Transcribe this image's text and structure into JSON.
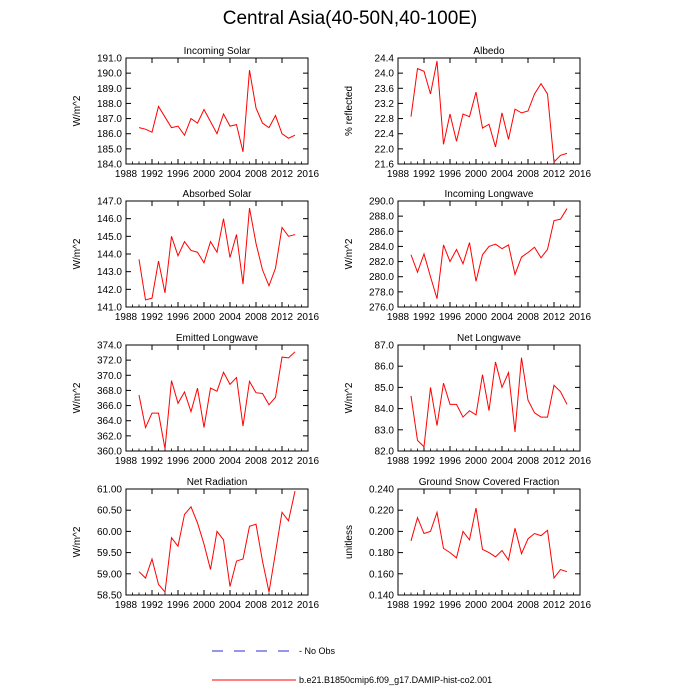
{
  "page_title": "Central Asia(40-50N,40-100E)",
  "chart_data": [
    {
      "type": "line",
      "title": "Incoming Solar",
      "ylabel": "W/m^2",
      "xlim": [
        1988,
        2016
      ],
      "ylim": [
        184.0,
        191.0
      ],
      "xticks": [
        "1988",
        "1992",
        "1996",
        "2000",
        "2004",
        "2008",
        "2012",
        "2016"
      ],
      "yticks": [
        "184.0",
        "185.0",
        "186.0",
        "187.0",
        "188.0",
        "189.0",
        "190.0",
        "191.0"
      ],
      "grid": false,
      "series": [
        {
          "name": "b.e21.B1850cmip6.f09_g17.DAMIP-hist-co2.001",
          "color": "#ff0000",
          "x": [
            1990,
            1991,
            1992,
            1993,
            1994,
            1995,
            1996,
            1997,
            1998,
            1999,
            2000,
            2001,
            2002,
            2003,
            2004,
            2005,
            2006,
            2007,
            2008,
            2009,
            2010,
            2011,
            2012,
            2013,
            2014
          ],
          "y": [
            186.4,
            186.3,
            186.1,
            187.8,
            187.1,
            186.4,
            186.5,
            185.9,
            187.0,
            186.7,
            187.6,
            186.8,
            186.0,
            187.3,
            186.5,
            186.6,
            184.8,
            190.2,
            187.7,
            186.7,
            186.4,
            187.2,
            186.0,
            185.7,
            185.9
          ]
        }
      ]
    },
    {
      "type": "line",
      "title": "Albedo",
      "ylabel": "% reflected",
      "xlim": [
        1988,
        2016
      ],
      "ylim": [
        21.6,
        24.4
      ],
      "xticks": [
        "1988",
        "1992",
        "1996",
        "2000",
        "2004",
        "2008",
        "2012",
        "2016"
      ],
      "yticks": [
        "21.6",
        "22.0",
        "22.4",
        "22.8",
        "23.2",
        "23.6",
        "24.0",
        "24.4"
      ],
      "grid": false,
      "series": [
        {
          "name": "b.e21.B1850cmip6.f09_g17.DAMIP-hist-co2.001",
          "color": "#ff0000",
          "x": [
            1990,
            1991,
            1992,
            1993,
            1994,
            1995,
            1996,
            1997,
            1998,
            1999,
            2000,
            2001,
            2002,
            2003,
            2004,
            2005,
            2006,
            2007,
            2008,
            2009,
            2010,
            2011,
            2012,
            2013,
            2014
          ],
          "y": [
            22.85,
            24.12,
            24.05,
            23.45,
            24.32,
            22.12,
            22.92,
            22.2,
            22.92,
            22.85,
            23.5,
            22.55,
            22.65,
            22.05,
            22.95,
            22.25,
            23.05,
            22.95,
            23.0,
            23.45,
            23.72,
            23.45,
            21.65,
            21.83,
            21.88
          ]
        }
      ]
    },
    {
      "type": "line",
      "title": "Absorbed Solar",
      "ylabel": "W/m^2",
      "xlim": [
        1988,
        2016
      ],
      "ylim": [
        141.0,
        147.0
      ],
      "xticks": [
        "1988",
        "1992",
        "1996",
        "2000",
        "2004",
        "2008",
        "2012",
        "2016"
      ],
      "yticks": [
        "141.0",
        "142.0",
        "143.0",
        "144.0",
        "145.0",
        "146.0",
        "147.0"
      ],
      "grid": false,
      "series": [
        {
          "name": "b.e21.B1850cmip6.f09_g17.DAMIP-hist-co2.001",
          "color": "#ff0000",
          "x": [
            1990,
            1991,
            1992,
            1993,
            1994,
            1995,
            1996,
            1997,
            1998,
            1999,
            2000,
            2001,
            2002,
            2003,
            2004,
            2005,
            2006,
            2007,
            2008,
            2009,
            2010,
            2011,
            2012,
            2013,
            2014
          ],
          "y": [
            143.7,
            141.4,
            141.5,
            143.6,
            141.8,
            145.0,
            143.9,
            144.7,
            144.2,
            144.1,
            143.5,
            144.7,
            144.1,
            146.0,
            143.8,
            145.1,
            142.3,
            146.6,
            144.6,
            143.1,
            142.2,
            143.2,
            145.5,
            145.0,
            145.1
          ]
        }
      ]
    },
    {
      "type": "line",
      "title": "Incoming Longwave",
      "ylabel": "W/m^2",
      "xlim": [
        1988,
        2016
      ],
      "ylim": [
        276.0,
        290.0
      ],
      "xticks": [
        "1988",
        "1992",
        "1996",
        "2000",
        "2004",
        "2008",
        "2012",
        "2016"
      ],
      "yticks": [
        "276.0",
        "278.0",
        "280.0",
        "282.0",
        "284.0",
        "286.0",
        "288.0",
        "290.0"
      ],
      "grid": false,
      "series": [
        {
          "name": "b.e21.B1850cmip6.f09_g17.DAMIP-hist-co2.001",
          "color": "#ff0000",
          "x": [
            1990,
            1991,
            1992,
            1993,
            1994,
            1995,
            1996,
            1997,
            1998,
            1999,
            2000,
            2001,
            2002,
            2003,
            2004,
            2005,
            2006,
            2007,
            2008,
            2009,
            2010,
            2011,
            2012,
            2013,
            2014
          ],
          "y": [
            282.9,
            280.6,
            283.0,
            280.0,
            277.1,
            284.2,
            282.0,
            283.6,
            281.7,
            284.5,
            279.4,
            282.9,
            284.0,
            284.3,
            283.7,
            284.2,
            280.3,
            282.6,
            283.2,
            283.9,
            282.5,
            283.6,
            287.4,
            287.6,
            289.0
          ]
        }
      ]
    },
    {
      "type": "line",
      "title": "Emitted Longwave",
      "ylabel": "W/m^2",
      "xlim": [
        1988,
        2016
      ],
      "ylim": [
        360.0,
        374.0
      ],
      "xticks": [
        "1988",
        "1992",
        "1996",
        "2000",
        "2004",
        "2008",
        "2012",
        "2016"
      ],
      "yticks": [
        "360.0",
        "362.0",
        "364.0",
        "366.0",
        "368.0",
        "370.0",
        "372.0",
        "374.0"
      ],
      "grid": false,
      "series": [
        {
          "name": "b.e21.B1850cmip6.f09_g17.DAMIP-hist-co2.001",
          "color": "#ff0000",
          "x": [
            1990,
            1991,
            1992,
            1993,
            1994,
            1995,
            1996,
            1997,
            1998,
            1999,
            2000,
            2001,
            2002,
            2003,
            2004,
            2005,
            2006,
            2007,
            2008,
            2009,
            2010,
            2011,
            2012,
            2013,
            2014
          ],
          "y": [
            367.4,
            363.1,
            365.0,
            365.0,
            360.3,
            369.3,
            366.3,
            367.8,
            365.2,
            368.3,
            363.1,
            368.3,
            367.9,
            370.4,
            368.8,
            369.7,
            363.3,
            369.2,
            367.7,
            367.6,
            366.1,
            367.1,
            372.4,
            372.3,
            373.1
          ]
        }
      ]
    },
    {
      "type": "line",
      "title": "Net Longwave",
      "ylabel": "W/m^2",
      "xlim": [
        1988,
        2016
      ],
      "ylim": [
        82.0,
        87.0
      ],
      "xticks": [
        "1988",
        "1992",
        "1996",
        "2000",
        "2004",
        "2008",
        "2012",
        "2016"
      ],
      "yticks": [
        "82.0",
        "83.0",
        "84.0",
        "85.0",
        "86.0",
        "87.0"
      ],
      "grid": false,
      "series": [
        {
          "name": "b.e21.B1850cmip6.f09_g17.DAMIP-hist-co2.001",
          "color": "#ff0000",
          "x": [
            1990,
            1991,
            1992,
            1993,
            1994,
            1995,
            1996,
            1997,
            1998,
            1999,
            2000,
            2001,
            2002,
            2003,
            2004,
            2005,
            2006,
            2007,
            2008,
            2009,
            2010,
            2011,
            2012,
            2013,
            2014
          ],
          "y": [
            84.6,
            82.5,
            82.2,
            85.0,
            83.2,
            85.2,
            84.2,
            84.2,
            83.6,
            83.9,
            83.7,
            85.6,
            83.9,
            86.2,
            85.0,
            85.7,
            82.9,
            86.4,
            84.4,
            83.8,
            83.6,
            83.6,
            85.1,
            84.8,
            84.2
          ]
        }
      ]
    },
    {
      "type": "line",
      "title": "Net Radiation",
      "ylabel": "W/m^2",
      "xlim": [
        1988,
        2016
      ],
      "ylim": [
        58.5,
        61.0
      ],
      "xticks": [
        "1988",
        "1992",
        "1996",
        "2000",
        "2004",
        "2008",
        "2012",
        "2016"
      ],
      "yticks": [
        "58.50",
        "59.00",
        "59.50",
        "60.00",
        "60.50",
        "61.00"
      ],
      "grid": false,
      "series": [
        {
          "name": "b.e21.B1850cmip6.f09_g17.DAMIP-hist-co2.001",
          "color": "#ff0000",
          "x": [
            1990,
            1991,
            1992,
            1993,
            1994,
            1995,
            1996,
            1997,
            1998,
            1999,
            2000,
            2001,
            2002,
            2003,
            2004,
            2005,
            2006,
            2007,
            2008,
            2009,
            2010,
            2011,
            2012,
            2013,
            2014
          ],
          "y": [
            59.05,
            58.9,
            59.35,
            58.75,
            58.57,
            59.85,
            59.65,
            60.4,
            60.58,
            60.2,
            59.7,
            59.1,
            60.0,
            59.8,
            58.7,
            59.3,
            59.35,
            60.12,
            60.17,
            59.3,
            58.57,
            59.5,
            60.45,
            60.25,
            60.95
          ]
        }
      ]
    },
    {
      "type": "line",
      "title": "Ground Snow Covered Fraction",
      "ylabel": "unitless",
      "xlim": [
        1988,
        2016
      ],
      "ylim": [
        0.14,
        0.24
      ],
      "xticks": [
        "1988",
        "1992",
        "1996",
        "2000",
        "2004",
        "2008",
        "2012",
        "2016"
      ],
      "yticks": [
        "0.140",
        "0.160",
        "0.180",
        "0.200",
        "0.220",
        "0.240"
      ],
      "grid": false,
      "series": [
        {
          "name": "b.e21.B1850cmip6.f09_g17.DAMIP-hist-co2.001",
          "color": "#ff0000",
          "x": [
            1990,
            1991,
            1992,
            1993,
            1994,
            1995,
            1996,
            1997,
            1998,
            1999,
            2000,
            2001,
            2002,
            2003,
            2004,
            2005,
            2006,
            2007,
            2008,
            2009,
            2010,
            2011,
            2012,
            2013,
            2014
          ],
          "y": [
            0.191,
            0.213,
            0.198,
            0.2,
            0.218,
            0.184,
            0.18,
            0.175,
            0.2,
            0.192,
            0.222,
            0.183,
            0.18,
            0.176,
            0.182,
            0.173,
            0.203,
            0.179,
            0.193,
            0.198,
            0.196,
            0.201,
            0.156,
            0.164,
            0.162
          ]
        }
      ]
    }
  ],
  "legend": {
    "placement": "bottom-center",
    "entries": [
      {
        "label": "- No Obs",
        "color": "#2b2bd6",
        "style": "dashed"
      },
      {
        "label": "b.e21.B1850cmip6.f09_g17.DAMIP-hist-co2.001",
        "color": "#ff0000",
        "style": "solid"
      }
    ]
  }
}
